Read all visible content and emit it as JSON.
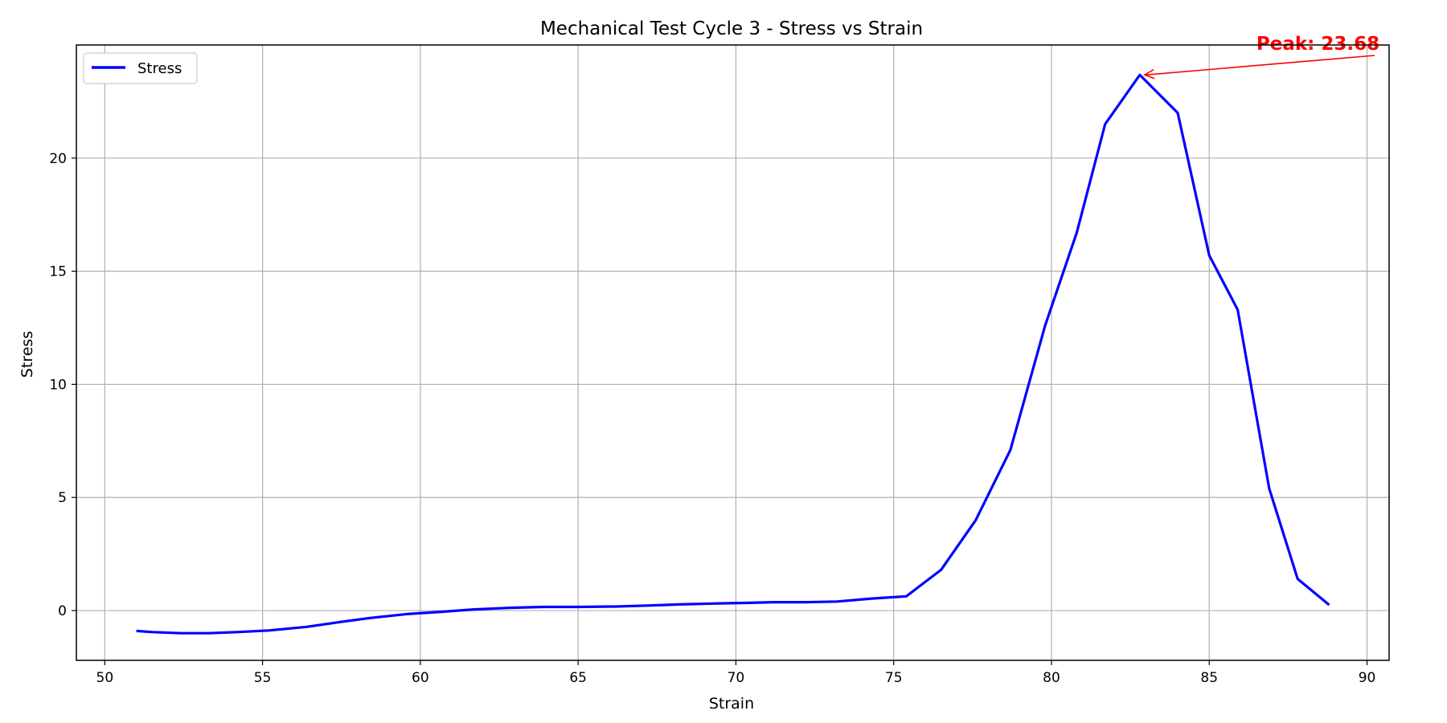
{
  "chart_data": {
    "type": "line",
    "title": "Mechanical Test Cycle 3 - Stress vs Strain",
    "xlabel": "Strain",
    "ylabel": "Stress",
    "xlim": [
      49.1,
      90.7
    ],
    "ylim": [
      -2.2,
      25.0
    ],
    "xticks": [
      50,
      55,
      60,
      65,
      70,
      75,
      80,
      85,
      90
    ],
    "yticks": [
      0,
      5,
      10,
      15,
      20
    ],
    "grid": true,
    "legend": {
      "position": "top-left",
      "entries": [
        "Stress"
      ]
    },
    "series": [
      {
        "name": "Stress",
        "color": "#0000ff",
        "x": [
          51.0,
          51.5,
          52.4,
          53.3,
          54.2,
          55.2,
          56.4,
          57.5,
          58.4,
          59.6,
          60.7,
          61.7,
          62.8,
          63.9,
          65.0,
          66.2,
          67.2,
          68.2,
          69.3,
          70.3,
          71.2,
          72.2,
          73.2,
          74.3,
          75.4,
          76.5,
          77.6,
          78.7,
          79.8,
          80.8,
          81.7,
          82.8,
          84.0,
          85.0,
          85.9,
          86.9,
          87.8,
          88.8
        ],
        "y": [
          -0.9,
          -0.95,
          -1.0,
          -1.0,
          -0.95,
          -0.88,
          -0.72,
          -0.5,
          -0.33,
          -0.15,
          -0.05,
          0.05,
          0.12,
          0.16,
          0.16,
          0.18,
          0.22,
          0.27,
          0.31,
          0.34,
          0.37,
          0.37,
          0.4,
          0.53,
          0.63,
          1.8,
          4.0,
          7.1,
          12.6,
          16.7,
          21.5,
          23.68,
          22.0,
          15.7,
          13.3,
          5.4,
          1.4,
          0.25
        ]
      }
    ],
    "annotations": [
      {
        "text": "Peak: 23.68",
        "x": 82.8,
        "y": 23.68,
        "text_x": 90.5,
        "text_y": 25.0,
        "color": "#ff0000"
      }
    ]
  }
}
